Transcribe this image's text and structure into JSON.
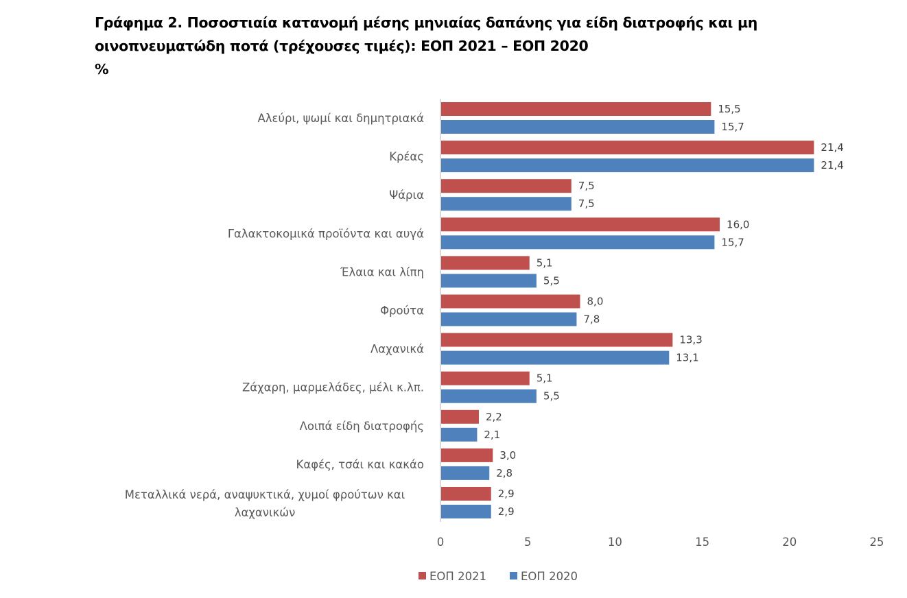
{
  "header": {
    "title_line1": "Γράφημα 2.  Ποσοστιαία κατανομή μέσης μηνιαίας δαπάνης για είδη διατροφής και μη",
    "title_line2": "οινοπνευματώδη ποτά (τρέχουσες τιμές): ΕΟΠ 2021 – ΕΟΠ 2020",
    "unit": "%"
  },
  "chart_data": {
    "type": "bar",
    "orientation": "horizontal",
    "title": "Γράφημα 2.  Ποσοστιαία κατανομή μέσης μηνιαίας δαπάνης για είδη διατροφής και μη οινοπνευματώδη ποτά (τρέχουσες τιμές): ΕΟΠ 2021 – ΕΟΠ 2020",
    "ylabel": "%",
    "xlabel": "",
    "categories": [
      [
        "Αλεύρι, ψωμί και δημητριακά"
      ],
      [
        "Κρέας"
      ],
      [
        "Ψάρια"
      ],
      [
        "Γαλακτοκομικά προϊόντα και αυγά"
      ],
      [
        "Έλαια και λίπη"
      ],
      [
        "Φρούτα"
      ],
      [
        "Λαχανικά"
      ],
      [
        "Ζάχαρη, μαρμελάδες, μέλι κ.λπ."
      ],
      [
        "Λοιπά είδη διατροφής"
      ],
      [
        "Καφές, τσάι και κακάο"
      ],
      [
        "Μεταλλικά νερά, αναψυκτικά, χυμοί φρούτων και",
        "λαχανικών"
      ]
    ],
    "series": [
      {
        "name": "ΕΟΠ 2021",
        "color": "#C0504D",
        "values": [
          15.5,
          21.4,
          7.5,
          16.0,
          5.1,
          8.0,
          13.3,
          5.1,
          2.2,
          3.0,
          2.9
        ],
        "labels": [
          "15,5",
          "21,4",
          "7,5",
          "16,0",
          "5,1",
          "8,0",
          "13,3",
          "5,1",
          "2,2",
          "3,0",
          "2,9"
        ]
      },
      {
        "name": "ΕΟΠ 2020",
        "color": "#4F81BD",
        "values": [
          15.7,
          21.4,
          7.5,
          15.7,
          5.5,
          7.8,
          13.1,
          5.5,
          2.1,
          2.8,
          2.9
        ],
        "labels": [
          "15,7",
          "21,4",
          "7,5",
          "15,7",
          "5,5",
          "7,8",
          "13,1",
          "5,5",
          "2,1",
          "2,8",
          "2,9"
        ]
      }
    ],
    "xlim": [
      0,
      25
    ],
    "xticks": [
      "0",
      "5",
      "10",
      "15",
      "20",
      "25"
    ],
    "xtick_values": [
      0,
      5,
      10,
      15,
      20,
      25
    ],
    "grid": false,
    "legend": "bottom",
    "axis_color": "#D9D9D9"
  }
}
